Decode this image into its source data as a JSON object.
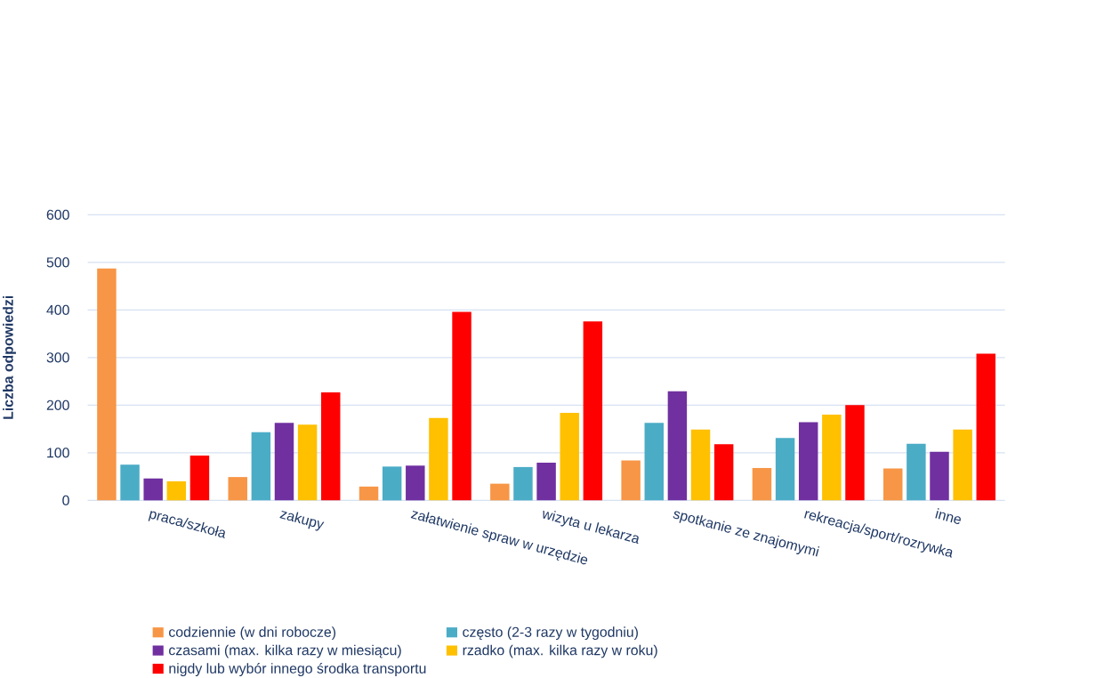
{
  "chart_data": {
    "type": "bar",
    "ylabel": "Liczba odpowiedzi",
    "categories": [
      "praca/szkoła",
      "zakupy",
      "załatwienie spraw w urzędzie",
      "wizyta u lekarza",
      "spotkanie ze znajomymi",
      "rekreacja/sport/rozrywka",
      "inne"
    ],
    "series": [
      {
        "name": "codziennie (w dni robocze)",
        "color": "#f79646",
        "values": [
          487,
          49,
          29,
          35,
          84,
          68,
          67
        ]
      },
      {
        "name": "często (2-3 razy w tygodniu)",
        "color": "#4bacc6",
        "values": [
          75,
          143,
          71,
          70,
          163,
          131,
          119
        ]
      },
      {
        "name": "czasami (max. kilka razy w miesiącu)",
        "color": "#7030a0",
        "values": [
          46,
          163,
          73,
          79,
          229,
          164,
          102
        ]
      },
      {
        "name": "rzadko (max. kilka razy w roku)",
        "color": "#ffc000",
        "values": [
          40,
          159,
          173,
          184,
          149,
          180,
          149
        ]
      },
      {
        "name": "nigdy lub wybór innego środka transportu",
        "color": "#ff0000",
        "values": [
          94,
          227,
          396,
          376,
          118,
          200,
          308
        ]
      }
    ],
    "ylim": [
      0,
      600
    ],
    "yticks": [
      0,
      100,
      200,
      300,
      400,
      500,
      600
    ],
    "grid": "y",
    "legend": "bottom"
  }
}
